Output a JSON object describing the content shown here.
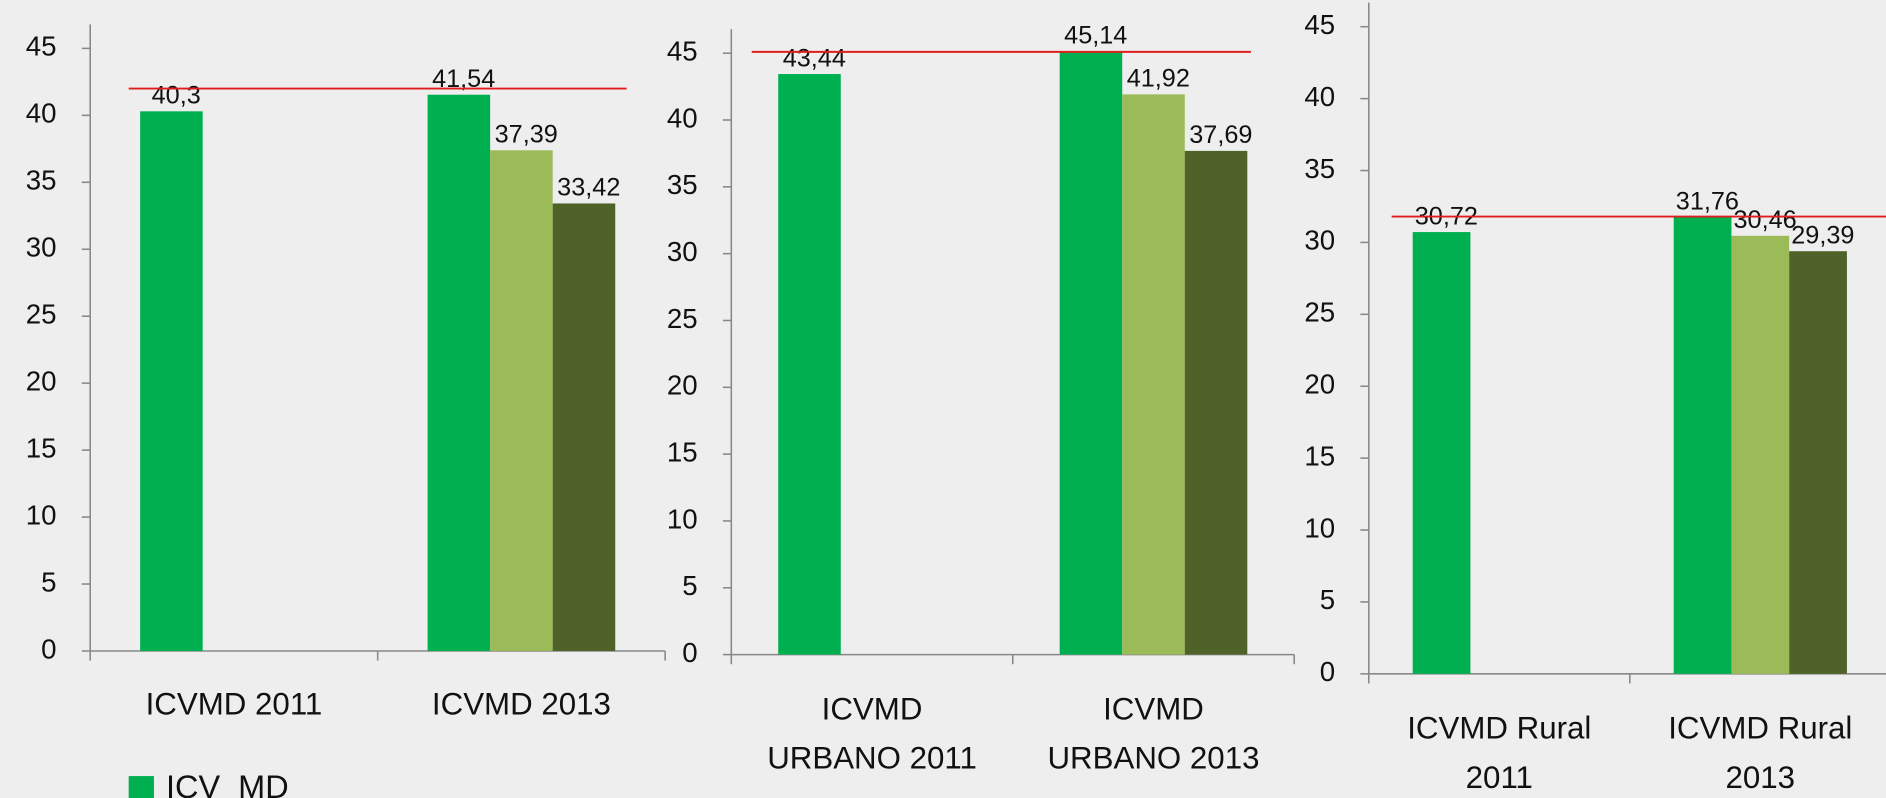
{
  "chart_data": [
    {
      "type": "bar",
      "categories": [
        [
          "ICVMD 2011"
        ],
        [
          "ICVMD 2013"
        ]
      ],
      "series": [
        {
          "name": "ICV_MD",
          "color": "#00b050",
          "values": [
            40.3,
            41.54
          ],
          "value_labels": [
            "40,3",
            "41,54"
          ]
        },
        {
          "color": "#9bbb59",
          "values": [
            null,
            37.39
          ],
          "value_labels": [
            null,
            "37,39"
          ]
        },
        {
          "color": "#4f6228",
          "values": [
            null,
            33.42
          ],
          "value_labels": [
            null,
            "33,42"
          ]
        }
      ],
      "ylim": [
        0,
        45
      ],
      "yticks": [
        0,
        5,
        10,
        15,
        20,
        25,
        30,
        35,
        40,
        45
      ],
      "reference_line": {
        "value": 42,
        "color": "#e01e1e"
      },
      "legend": "bottom-left"
    },
    {
      "type": "bar",
      "categories": [
        [
          "ICVMD",
          "URBANO 2011"
        ],
        [
          "ICVMD",
          "URBANO 2013"
        ]
      ],
      "series": [
        {
          "color": "#00b050",
          "values": [
            43.44,
            45.14
          ],
          "value_labels": [
            "43,44",
            "45,14"
          ]
        },
        {
          "color": "#9bbb59",
          "values": [
            null,
            41.92
          ],
          "value_labels": [
            null,
            "41,92"
          ]
        },
        {
          "color": "#4f6228",
          "values": [
            null,
            37.69
          ],
          "value_labels": [
            null,
            "37,69"
          ]
        }
      ],
      "ylim": [
        0,
        45
      ],
      "yticks": [
        0,
        5,
        10,
        15,
        20,
        25,
        30,
        35,
        40,
        45
      ],
      "reference_line": {
        "value": 45.1,
        "color": "#e01e1e"
      }
    },
    {
      "type": "bar",
      "categories": [
        [
          "ICVMD Rural",
          "2011"
        ],
        [
          "ICVMD Rural",
          "2013"
        ]
      ],
      "series": [
        {
          "color": "#00b050",
          "values": [
            30.72,
            31.76
          ],
          "value_labels": [
            "30,72",
            "31,76"
          ]
        },
        {
          "color": "#9bbb59",
          "values": [
            null,
            30.46
          ],
          "value_labels": [
            null,
            "30,46"
          ]
        },
        {
          "color": "#4f6228",
          "values": [
            null,
            29.39
          ],
          "value_labels": [
            null,
            "29,39"
          ]
        }
      ],
      "ylim": [
        0,
        45
      ],
      "yticks": [
        0,
        5,
        10,
        15,
        20,
        25,
        30,
        35,
        40,
        45
      ],
      "reference_line": {
        "value": 31.8,
        "color": "#e01e1e"
      }
    }
  ]
}
